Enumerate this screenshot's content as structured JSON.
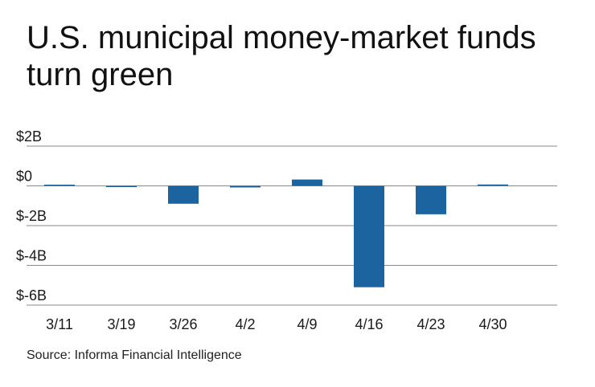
{
  "title": "U.S. municipal money-market funds turn green",
  "source": "Source: Informa Financial Intelligence",
  "colors": {
    "bar": "#1c64a0",
    "grid": "#8a8a8a",
    "text": "#1a1a1a"
  },
  "chart_data": {
    "type": "bar",
    "title": "U.S. municipal money-market funds turn green",
    "xlabel": "",
    "ylabel": "",
    "categories": [
      "3/11",
      "3/19",
      "3/26",
      "4/2",
      "4/9",
      "4/16",
      "4/23",
      "4/30"
    ],
    "values": [
      0.05,
      -0.03,
      -0.9,
      -0.08,
      0.32,
      -5.1,
      -1.43,
      0.07
    ],
    "ylim": [
      -6,
      2
    ],
    "yticks": [
      2,
      0,
      -2,
      -4,
      -6
    ],
    "ytick_labels": [
      "$2B",
      "$0",
      "$-2B",
      "$-4B",
      "$-6B"
    ],
    "grid": true,
    "legend": "none"
  }
}
